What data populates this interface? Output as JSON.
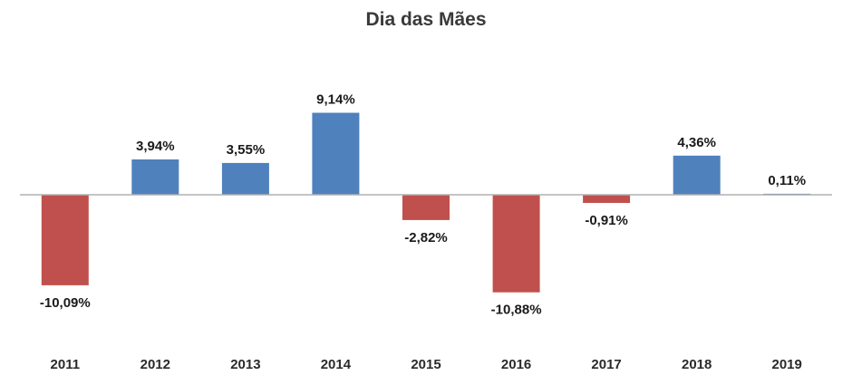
{
  "chart_data": {
    "type": "bar",
    "title": "Dia das Mães",
    "categories": [
      "2011",
      "2012",
      "2013",
      "2014",
      "2015",
      "2016",
      "2017",
      "2018",
      "2019"
    ],
    "values": [
      -10.09,
      3.94,
      3.55,
      9.14,
      -2.82,
      -10.88,
      -0.91,
      4.36,
      0.11
    ],
    "value_labels": [
      "-10,09%",
      "3,94%",
      "3,55%",
      "9,14%",
      "-2,82%",
      "-10,88%",
      "-0,91%",
      "4,36%",
      "0,11%"
    ],
    "xlabel": "",
    "ylabel": "",
    "ylim": [
      -12,
      10
    ],
    "grid": false,
    "legend": "none",
    "colors": {
      "positive": "#4f81bd",
      "negative": "#c0504d",
      "axis": "#b0b0b0"
    }
  }
}
